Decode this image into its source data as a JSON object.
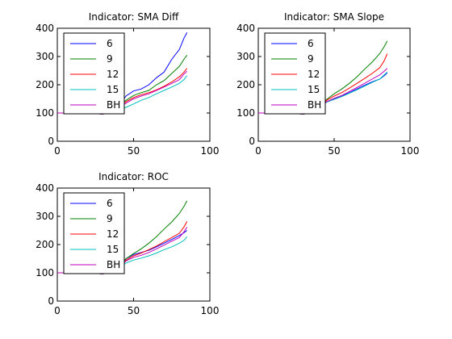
{
  "chart_data": [
    {
      "type": "line",
      "title": "Indicator: SMA Diff",
      "xlim": [
        0,
        100
      ],
      "ylim": [
        0,
        400
      ],
      "xticks": [
        "0",
        "50",
        "100"
      ],
      "yticks": [
        "0",
        "100",
        "200",
        "300",
        "400"
      ],
      "legend_placement": "top-left",
      "grid": false,
      "series": [
        {
          "name": "6",
          "color": "#0000ff",
          "points": [
            [
              0,
              100
            ],
            [
              20,
              100
            ],
            [
              30,
              96
            ],
            [
              40,
              125
            ],
            [
              45,
              160
            ],
            [
              50,
              178
            ],
            [
              55,
              185
            ],
            [
              60,
              200
            ],
            [
              65,
              225
            ],
            [
              70,
              245
            ],
            [
              75,
              290
            ],
            [
              80,
              325
            ],
            [
              83,
              365
            ],
            [
              85,
              385
            ]
          ]
        },
        {
          "name": "9",
          "color": "#008000",
          "points": [
            [
              0,
              100
            ],
            [
              20,
              100
            ],
            [
              30,
              96
            ],
            [
              40,
              122
            ],
            [
              45,
              145
            ],
            [
              50,
              162
            ],
            [
              55,
              172
            ],
            [
              60,
              180
            ],
            [
              65,
              200
            ],
            [
              70,
              215
            ],
            [
              75,
              240
            ],
            [
              80,
              265
            ],
            [
              83,
              290
            ],
            [
              85,
              305
            ]
          ]
        },
        {
          "name": "12",
          "color": "#ff0000",
          "points": [
            [
              0,
              100
            ],
            [
              20,
              100
            ],
            [
              30,
              96
            ],
            [
              40,
              120
            ],
            [
              45,
              140
            ],
            [
              50,
              155
            ],
            [
              55,
              165
            ],
            [
              60,
              172
            ],
            [
              65,
              182
            ],
            [
              70,
              195
            ],
            [
              75,
              210
            ],
            [
              80,
              228
            ],
            [
              83,
              245
            ],
            [
              85,
              258
            ]
          ]
        },
        {
          "name": "15",
          "color": "#00bfbf",
          "points": [
            [
              0,
              100
            ],
            [
              20,
              100
            ],
            [
              30,
              96
            ],
            [
              40,
              110
            ],
            [
              45,
              120
            ],
            [
              50,
              132
            ],
            [
              55,
              145
            ],
            [
              60,
              155
            ],
            [
              65,
              168
            ],
            [
              70,
              180
            ],
            [
              75,
              192
            ],
            [
              80,
              205
            ],
            [
              83,
              218
            ],
            [
              85,
              232
            ]
          ]
        },
        {
          "name": "BH",
          "color": "#bf00bf",
          "points": [
            [
              0,
              100
            ],
            [
              20,
              100
            ],
            [
              30,
              96
            ],
            [
              40,
              118
            ],
            [
              45,
              135
            ],
            [
              50,
              150
            ],
            [
              55,
              160
            ],
            [
              60,
              168
            ],
            [
              65,
              180
            ],
            [
              70,
              192
            ],
            [
              75,
              205
            ],
            [
              80,
              218
            ],
            [
              83,
              238
            ],
            [
              85,
              248
            ]
          ]
        }
      ]
    },
    {
      "type": "line",
      "title": "Indicator: SMA Slope",
      "xlim": [
        0,
        100
      ],
      "ylim": [
        0,
        400
      ],
      "xticks": [
        "0",
        "50",
        "100"
      ],
      "yticks": [
        "0",
        "100",
        "200",
        "300",
        "400"
      ],
      "legend_placement": "top-left",
      "grid": false,
      "series": [
        {
          "name": "6",
          "color": "#0000ff",
          "points": [
            [
              0,
              100
            ],
            [
              20,
              100
            ],
            [
              30,
              96
            ],
            [
              40,
              115
            ],
            [
              45,
              140
            ],
            [
              50,
              150
            ],
            [
              55,
              160
            ],
            [
              60,
              172
            ],
            [
              65,
              185
            ],
            [
              70,
              198
            ],
            [
              75,
              210
            ],
            [
              80,
              220
            ],
            [
              83,
              232
            ],
            [
              85,
              242
            ]
          ]
        },
        {
          "name": "9",
          "color": "#008000",
          "points": [
            [
              0,
              100
            ],
            [
              20,
              100
            ],
            [
              30,
              96
            ],
            [
              40,
              118
            ],
            [
              45,
              148
            ],
            [
              50,
              168
            ],
            [
              55,
              185
            ],
            [
              60,
              205
            ],
            [
              65,
              228
            ],
            [
              70,
              255
            ],
            [
              75,
              280
            ],
            [
              80,
              310
            ],
            [
              83,
              335
            ],
            [
              85,
              355
            ]
          ]
        },
        {
          "name": "12",
          "color": "#ff0000",
          "points": [
            [
              0,
              100
            ],
            [
              20,
              100
            ],
            [
              30,
              96
            ],
            [
              40,
              116
            ],
            [
              45,
              145
            ],
            [
              50,
              160
            ],
            [
              55,
              172
            ],
            [
              60,
              188
            ],
            [
              65,
              205
            ],
            [
              70,
              222
            ],
            [
              75,
              240
            ],
            [
              80,
              260
            ],
            [
              83,
              285
            ],
            [
              85,
              310
            ]
          ]
        },
        {
          "name": "15",
          "color": "#00bfbf",
          "points": [
            [
              0,
              100
            ],
            [
              20,
              100
            ],
            [
              30,
              96
            ],
            [
              40,
              112
            ],
            [
              45,
              138
            ],
            [
              50,
              148
            ],
            [
              55,
              158
            ],
            [
              60,
              170
            ],
            [
              65,
              182
            ],
            [
              70,
              195
            ],
            [
              75,
              208
            ],
            [
              80,
              220
            ],
            [
              83,
              235
            ],
            [
              85,
              245
            ]
          ]
        },
        {
          "name": "BH",
          "color": "#bf00bf",
          "points": [
            [
              0,
              100
            ],
            [
              20,
              100
            ],
            [
              30,
              96
            ],
            [
              40,
              114
            ],
            [
              45,
              140
            ],
            [
              50,
              152
            ],
            [
              55,
              162
            ],
            [
              60,
              176
            ],
            [
              65,
              190
            ],
            [
              70,
              205
            ],
            [
              75,
              220
            ],
            [
              80,
              235
            ],
            [
              83,
              248
            ],
            [
              85,
              258
            ]
          ]
        }
      ]
    },
    {
      "type": "line",
      "title": "Indicator: ROC",
      "xlim": [
        0,
        100
      ],
      "ylim": [
        0,
        400
      ],
      "xticks": [
        "0",
        "50",
        "100"
      ],
      "yticks": [
        "0",
        "100",
        "200",
        "300",
        "400"
      ],
      "legend_placement": "top-left",
      "grid": false,
      "series": [
        {
          "name": "6",
          "color": "#0000ff",
          "points": [
            [
              0,
              100
            ],
            [
              20,
              100
            ],
            [
              30,
              96
            ],
            [
              40,
              120
            ],
            [
              45,
              150
            ],
            [
              50,
              165
            ],
            [
              55,
              172
            ],
            [
              60,
              180
            ],
            [
              65,
              192
            ],
            [
              70,
              205
            ],
            [
              75,
              218
            ],
            [
              80,
              232
            ],
            [
              83,
              242
            ],
            [
              85,
              250
            ]
          ]
        },
        {
          "name": "9",
          "color": "#008000",
          "points": [
            [
              0,
              100
            ],
            [
              20,
              100
            ],
            [
              30,
              96
            ],
            [
              40,
              118
            ],
            [
              45,
              150
            ],
            [
              50,
              168
            ],
            [
              55,
              185
            ],
            [
              60,
              205
            ],
            [
              65,
              228
            ],
            [
              70,
              255
            ],
            [
              75,
              280
            ],
            [
              80,
              310
            ],
            [
              83,
              335
            ],
            [
              85,
              355
            ]
          ]
        },
        {
          "name": "12",
          "color": "#ff0000",
          "points": [
            [
              0,
              100
            ],
            [
              20,
              100
            ],
            [
              30,
              96
            ],
            [
              40,
              116
            ],
            [
              45,
              145
            ],
            [
              50,
              160
            ],
            [
              55,
              170
            ],
            [
              60,
              182
            ],
            [
              65,
              195
            ],
            [
              70,
              210
            ],
            [
              75,
              225
            ],
            [
              80,
              240
            ],
            [
              83,
              262
            ],
            [
              85,
              282
            ]
          ]
        },
        {
          "name": "15",
          "color": "#00bfbf",
          "points": [
            [
              0,
              100
            ],
            [
              20,
              100
            ],
            [
              30,
              96
            ],
            [
              40,
              112
            ],
            [
              45,
              135
            ],
            [
              50,
              145
            ],
            [
              55,
              152
            ],
            [
              60,
              160
            ],
            [
              65,
              170
            ],
            [
              70,
              182
            ],
            [
              75,
              192
            ],
            [
              80,
              205
            ],
            [
              83,
              215
            ],
            [
              85,
              228
            ]
          ]
        },
        {
          "name": "BH",
          "color": "#bf00bf",
          "points": [
            [
              0,
              100
            ],
            [
              20,
              100
            ],
            [
              30,
              96
            ],
            [
              40,
              115
            ],
            [
              45,
              142
            ],
            [
              50,
              155
            ],
            [
              55,
              162
            ],
            [
              60,
              172
            ],
            [
              65,
              185
            ],
            [
              70,
              198
            ],
            [
              75,
              212
            ],
            [
              80,
              225
            ],
            [
              83,
              245
            ],
            [
              85,
              262
            ]
          ]
        }
      ]
    }
  ]
}
